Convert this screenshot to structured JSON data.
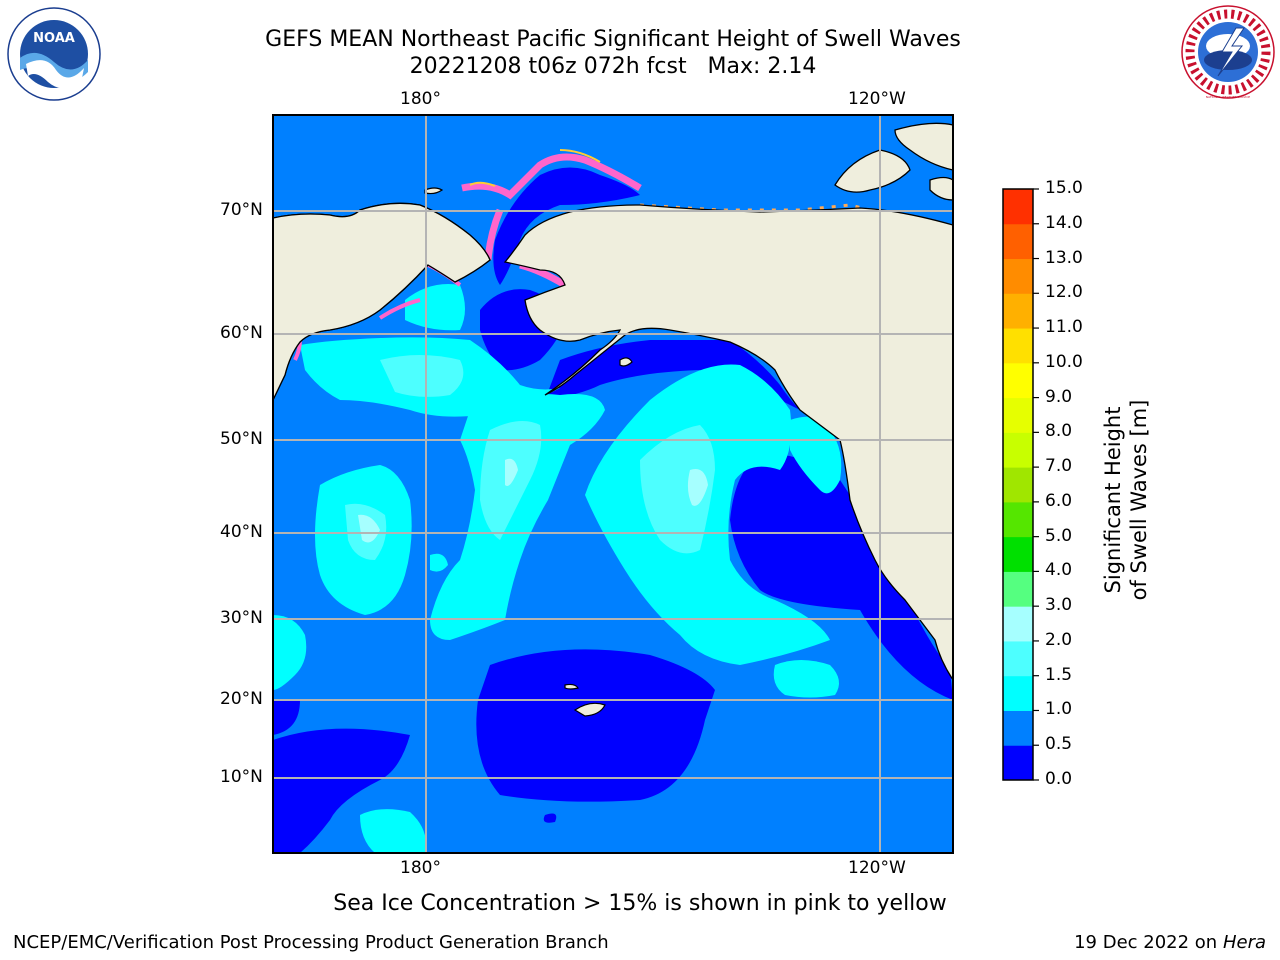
{
  "header": {
    "title_line1": "GEFS MEAN Northeast Pacific Significant Height of Swell Waves",
    "title_line2": "20221208 t06z 072h fcst   Max: 2.14"
  },
  "logos": {
    "noaa_text": "NOAA",
    "nws_text": "NATIONAL WEATHER SERVICE"
  },
  "map": {
    "lon_ticks_top": [
      "180°",
      "120°W"
    ],
    "lon_ticks_bottom": [
      "180°",
      "120°W"
    ],
    "lat_ticks": [
      "70°N",
      "60°N",
      "50°N",
      "40°N",
      "30°N",
      "20°N",
      "10°N"
    ],
    "colors": {
      "land": "#efeedd",
      "grid": "#b4b4b4"
    }
  },
  "colorbar": {
    "label": "Significant Height of Swell Waves [m]",
    "tick_labels": [
      "0.0",
      "0.5",
      "1.0",
      "1.5",
      "2.0",
      "3.0",
      "4.0",
      "5.0",
      "6.0",
      "7.0",
      "8.0",
      "9.0",
      "10.0",
      "11.0",
      "12.0",
      "13.0",
      "14.0",
      "15.0"
    ],
    "colors": [
      "#0000ff",
      "#0080ff",
      "#00ffff",
      "#4dffff",
      "#a6ffff",
      "#55ff80",
      "#00e000",
      "#55e600",
      "#a0e600",
      "#c8ff00",
      "#e6ff00",
      "#ffff00",
      "#ffe000",
      "#ffb000",
      "#ff8c00",
      "#ff6000",
      "#ff3000",
      "#ff0000"
    ]
  },
  "footer": {
    "note": "Sea Ice Concentration > 15% is shown in pink to yellow",
    "credit_left": "NCEP/EMC/Verification Post Processing Product Generation Branch",
    "credit_right_date": "19 Dec 2022 on",
    "credit_right_host": "Hera"
  }
}
